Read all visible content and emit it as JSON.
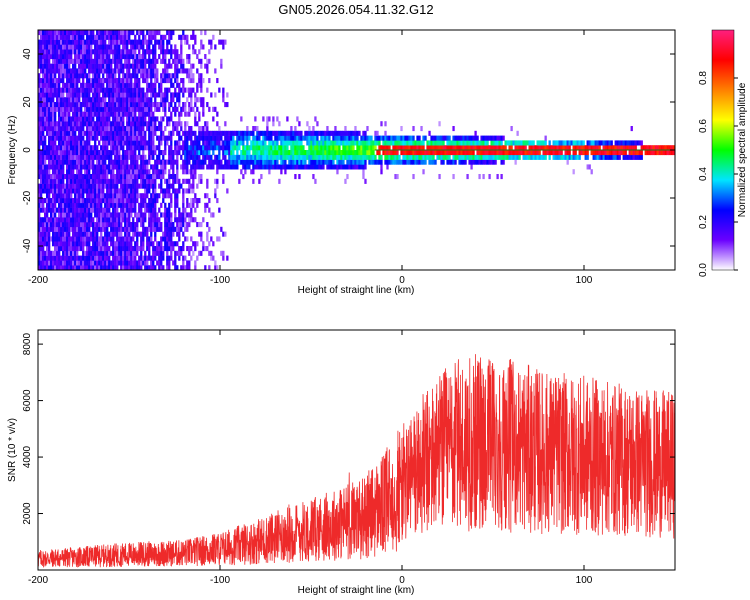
{
  "title": "GN05.2026.054.11.32.G12",
  "chart_data": [
    {
      "type": "heatmap",
      "name": "spectrogram",
      "xlabel": "Height of straight line (km)",
      "ylabel": "Frequency (Hz)",
      "xlim": [
        -200,
        150
      ],
      "ylim": [
        -50,
        50
      ],
      "xticks": [
        -200,
        -100,
        0,
        100
      ],
      "yticks": [
        40,
        20,
        0,
        -20,
        -40
      ],
      "colorbar": {
        "label": "Normalized spectral amplitude",
        "range": [
          0,
          1
        ],
        "ticks": [
          0.0,
          0.2,
          0.4,
          0.6,
          0.8
        ],
        "tick_labels": [
          "0.0",
          "0.2",
          "0.4",
          "0.6",
          "0.8"
        ],
        "colors": [
          "#ffffff",
          "#6a00ff",
          "#0000ff",
          "#00e5ff",
          "#00ff00",
          "#ffff00",
          "#ff8000",
          "#ff0000",
          "#ff1f7f"
        ]
      },
      "zero_line_color": "#1a7a1a"
    },
    {
      "type": "line",
      "name": "snr",
      "xlabel": "Height of straight line (km)",
      "ylabel": "SNR (10 * v/v)",
      "xlim": [
        -200,
        150
      ],
      "ylim": [
        0,
        8500
      ],
      "xticks": [
        -200,
        -100,
        0,
        100
      ],
      "yticks": [
        2000,
        4000,
        6000,
        8000
      ],
      "color": "#ee2a2a",
      "envelope": {
        "x": [
          -200,
          -180,
          -150,
          -120,
          -100,
          -80,
          -60,
          -40,
          -20,
          -10,
          0,
          10,
          20,
          30,
          40,
          50,
          60,
          80,
          100,
          120,
          150
        ],
        "y": [
          400,
          450,
          550,
          600,
          750,
          1000,
          1300,
          1550,
          1900,
          2300,
          3000,
          3600,
          4100,
          4400,
          4500,
          4500,
          4400,
          4150,
          4050,
          3900,
          3700
        ]
      }
    }
  ]
}
